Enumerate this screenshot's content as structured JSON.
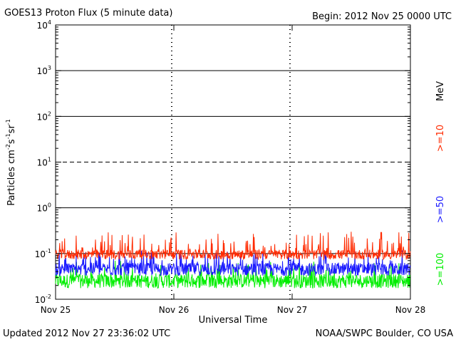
{
  "chart_data": {
    "type": "line",
    "title": "GOES13 Proton Flux (5 minute data)",
    "begin_label": "Begin: 2012 Nov 25 0000 UTC",
    "xlabel": "Universal Time",
    "ylabel": "Particles cm⁻²s⁻¹sr⁻¹",
    "ylabel_parts": {
      "base": "Particles cm",
      "e1": "-2",
      "mid1": "s",
      "e2": "-1",
      "mid2": "sr",
      "e3": "-1"
    },
    "yscale": "log",
    "ylim": [
      0.01,
      10000
    ],
    "y_ticks": [
      {
        "mantissa": "10",
        "exp": "-2"
      },
      {
        "mantissa": "10",
        "exp": "-1"
      },
      {
        "mantissa": "10",
        "exp": "0"
      },
      {
        "mantissa": "10",
        "exp": "1"
      },
      {
        "mantissa": "10",
        "exp": "2"
      },
      {
        "mantissa": "10",
        "exp": "3"
      },
      {
        "mantissa": "10",
        "exp": "4"
      }
    ],
    "x_ticks": [
      "Nov 25",
      "Nov 26",
      "Nov 27",
      "Nov 28"
    ],
    "xlim_days": [
      0,
      3
    ],
    "legend_unit": "MeV",
    "series": [
      {
        "name": ">=10",
        "color": "#ff2a00",
        "median": 0.095,
        "low": 0.07,
        "high": 0.3
      },
      {
        "name": ">=50",
        "color": "#1a1aff",
        "median": 0.045,
        "low": 0.03,
        "high": 0.12
      },
      {
        "name": ">=100",
        "color": "#00ee00",
        "median": 0.025,
        "low": 0.016,
        "high": 0.07
      }
    ],
    "grid": "horizontal lines at decades, dashed at 10^1"
  },
  "footer": {
    "updated": "Updated 2012 Nov 27 23:36:02 UTC",
    "credit": "NOAA/SWPC Boulder, CO USA"
  }
}
